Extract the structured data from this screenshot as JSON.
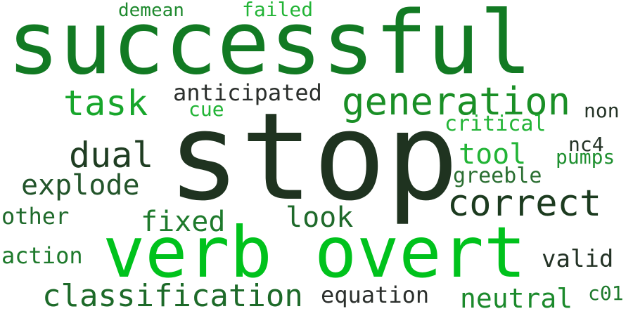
{
  "words": [
    {
      "text": "successful",
      "color": "#127a23"
    },
    {
      "text": "stop",
      "color": "#1f3320"
    },
    {
      "text": "verb overt",
      "color": "#00c21c"
    },
    {
      "text": "generation",
      "color": "#1a8f26"
    },
    {
      "text": "task",
      "color": "#17a62b"
    },
    {
      "text": "correct",
      "color": "#1c3b1f"
    },
    {
      "text": "dual",
      "color": "#1f3d22"
    },
    {
      "text": "classification",
      "color": "#1d6a29"
    },
    {
      "text": "explode",
      "color": "#23552b"
    },
    {
      "text": "fixed",
      "color": "#1e7a2c"
    },
    {
      "text": "look",
      "color": "#1f6a2b"
    },
    {
      "text": "anticipated",
      "color": "#2b2f2c"
    },
    {
      "text": "tool",
      "color": "#22b436"
    },
    {
      "text": "neutral",
      "color": "#1c8a2c"
    },
    {
      "text": "equation",
      "color": "#2b2f2c"
    },
    {
      "text": "valid",
      "color": "#243326"
    },
    {
      "text": "action",
      "color": "#1e7a2c"
    },
    {
      "text": "other",
      "color": "#1f6a2b"
    },
    {
      "text": "greeble",
      "color": "#2a6e31"
    },
    {
      "text": "critical",
      "color": "#22b436"
    },
    {
      "text": "failed",
      "color": "#22b436"
    },
    {
      "text": "demean",
      "color": "#1f8a2f"
    },
    {
      "text": "cue",
      "color": "#22b436"
    },
    {
      "text": "non",
      "color": "#243326"
    },
    {
      "text": "nc4",
      "color": "#243326"
    },
    {
      "text": "pumps",
      "color": "#1e8f2f"
    },
    {
      "text": "c01",
      "color": "#1e7a2c"
    }
  ]
}
